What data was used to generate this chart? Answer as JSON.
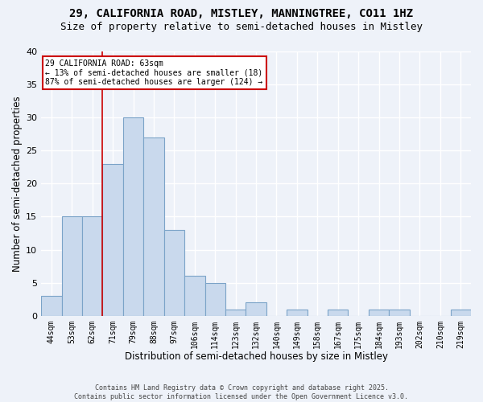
{
  "title1": "29, CALIFORNIA ROAD, MISTLEY, MANNINGTREE, CO11 1HZ",
  "title2": "Size of property relative to semi-detached houses in Mistley",
  "xlabel": "Distribution of semi-detached houses by size in Mistley",
  "ylabel": "Number of semi-detached properties",
  "categories": [
    "44sqm",
    "53sqm",
    "62sqm",
    "71sqm",
    "79sqm",
    "88sqm",
    "97sqm",
    "106sqm",
    "114sqm",
    "123sqm",
    "132sqm",
    "140sqm",
    "149sqm",
    "158sqm",
    "167sqm",
    "175sqm",
    "184sqm",
    "193sqm",
    "202sqm",
    "210sqm",
    "219sqm"
  ],
  "values": [
    3,
    15,
    15,
    23,
    30,
    27,
    13,
    6,
    5,
    1,
    2,
    0,
    1,
    0,
    1,
    0,
    1,
    1,
    0,
    0,
    1
  ],
  "bar_color": "#c9d9ed",
  "bar_edge_color": "#7ba3c8",
  "vline_x": 2.5,
  "vline_color": "#cc0000",
  "annotation_title": "29 CALIFORNIA ROAD: 63sqm",
  "annotation_line1": "← 13% of semi-detached houses are smaller (18)",
  "annotation_line2": "87% of semi-detached houses are larger (124) →",
  "annotation_box_color": "#ffffff",
  "annotation_box_edge": "#cc0000",
  "ylim": [
    0,
    40
  ],
  "yticks": [
    0,
    5,
    10,
    15,
    20,
    25,
    30,
    35,
    40
  ],
  "footer": "Contains HM Land Registry data © Crown copyright and database right 2025.\nContains public sector information licensed under the Open Government Licence v3.0.",
  "background_color": "#eef2f9",
  "grid_color": "#ffffff",
  "title_fontsize": 10,
  "subtitle_fontsize": 9
}
